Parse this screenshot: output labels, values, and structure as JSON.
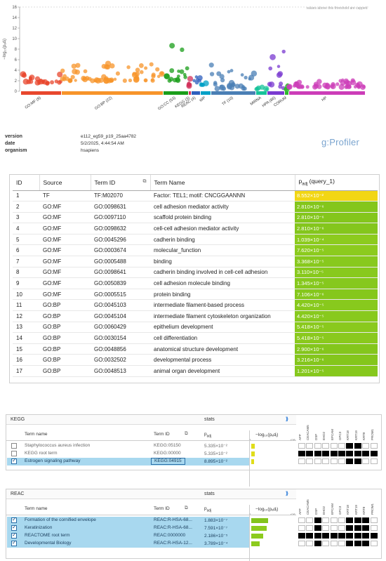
{
  "manhattan": {
    "y_axis_label": "−log₁₀(pₐdⱼ)",
    "cap_note": "values above this threshold are capped",
    "y_ticks": [
      "0",
      "2",
      "4",
      "6",
      "8",
      "10",
      "12",
      "14",
      "16"
    ],
    "sources": [
      {
        "label": "GO:MF (9)",
        "color": "#e8472d"
      },
      {
        "label": "GO:BP (22)",
        "color": "#f7942a"
      },
      {
        "label": "GO:CC (53)",
        "color": "#1a9e1a"
      },
      {
        "label": "KEGG (3)",
        "color": "#d2305a"
      },
      {
        "label": "REAC (4)",
        "color": "#2d5fbd"
      },
      {
        "label": "WP",
        "color": "#00a0c6"
      },
      {
        "label": "TF (10)",
        "color": "#4a7fb5"
      },
      {
        "label": "MIRNA",
        "color": "#17c39a"
      },
      {
        "label": "HPA (86)",
        "color": "#7a3ad0"
      },
      {
        "label": "CORUM",
        "color": "#2db82d"
      },
      {
        "label": "HP",
        "color": "#cc3db8"
      }
    ]
  },
  "meta": {
    "version_label": "version",
    "version": "e112_eg59_p19_25aa4782",
    "date_label": "date",
    "date": "5/2/2025, 4:44:54 AM",
    "organism_label": "organism",
    "organism": "hsapiens",
    "brand": "g:Profiler"
  },
  "main_table": {
    "headers": {
      "id": "ID",
      "source": "Source",
      "term_id": "Term ID",
      "term_name": "Term Name",
      "padj": "p",
      "padj_sub": "adj",
      "padj_query": " (query_1)"
    },
    "rows": [
      {
        "id": "1",
        "source": "TF",
        "term_id": "TF:M02070",
        "term_name": "Factor: TEL1; motif: CNCGGAANNN",
        "padj": "8.552×10⁻²",
        "color": "#f2d614"
      },
      {
        "id": "2",
        "source": "GO:MF",
        "term_id": "GO:0098631",
        "term_name": "cell adhesion mediator activity",
        "padj": "2.810×10⁻⁶",
        "color": "#84c61c"
      },
      {
        "id": "3",
        "source": "GO:MF",
        "term_id": "GO:0097110",
        "term_name": "scaffold protein binding",
        "padj": "2.810×10⁻⁶",
        "color": "#84c61c"
      },
      {
        "id": "4",
        "source": "GO:MF",
        "term_id": "GO:0098632",
        "term_name": "cell-cell adhesion mediator activity",
        "padj": "2.810×10⁻⁶",
        "color": "#84c61c"
      },
      {
        "id": "5",
        "source": "GO:MF",
        "term_id": "GO:0045296",
        "term_name": "cadherin binding",
        "padj": "1.039×10⁻⁴",
        "color": "#8ccb1e"
      },
      {
        "id": "6",
        "source": "GO:MF",
        "term_id": "GO:0003674",
        "term_name": "molecular_function",
        "padj": "7.620×10⁻⁵",
        "color": "#8ccb1e"
      },
      {
        "id": "7",
        "source": "GO:MF",
        "term_id": "GO:0005488",
        "term_name": "binding",
        "padj": "3.368×10⁻⁵",
        "color": "#88c91d"
      },
      {
        "id": "8",
        "source": "GO:MF",
        "term_id": "GO:0098641",
        "term_name": "cadherin binding involved in cell-cell adhesion",
        "padj": "3.110×10⁻⁵",
        "color": "#88c91d"
      },
      {
        "id": "9",
        "source": "GO:MF",
        "term_id": "GO:0050839",
        "term_name": "cell adhesion molecule binding",
        "padj": "1.345×10⁻⁵",
        "color": "#86c81d"
      },
      {
        "id": "10",
        "source": "GO:MF",
        "term_id": "GO:0005515",
        "term_name": "protein binding",
        "padj": "7.106×10⁻⁶",
        "color": "#85c71c"
      },
      {
        "id": "11",
        "source": "GO:BP",
        "term_id": "GO:0045103",
        "term_name": "intermediate filament-based process",
        "padj": "4.420×10⁻⁵",
        "color": "#88c91d"
      },
      {
        "id": "12",
        "source": "GO:BP",
        "term_id": "GO:0045104",
        "term_name": "intermediate filament cytoskeleton organization",
        "padj": "4.420×10⁻⁵",
        "color": "#88c91d"
      },
      {
        "id": "13",
        "source": "GO:BP",
        "term_id": "GO:0060429",
        "term_name": "epithelium development",
        "padj": "5.418×10⁻⁵",
        "color": "#8ac91d"
      },
      {
        "id": "14",
        "source": "GO:BP",
        "term_id": "GO:0030154",
        "term_name": "cell differentiation",
        "padj": "5.418×10⁻⁵",
        "color": "#8ac91d"
      },
      {
        "id": "15",
        "source": "GO:BP",
        "term_id": "GO:0048856",
        "term_name": "anatomical structure development",
        "padj": "2.900×10⁻⁶",
        "color": "#84c61c"
      },
      {
        "id": "16",
        "source": "GO:BP",
        "term_id": "GO:0032502",
        "term_name": "developmental process",
        "padj": "3.216×10⁻⁶",
        "color": "#84c61c"
      },
      {
        "id": "17",
        "source": "GO:BP",
        "term_id": "GO:0048513",
        "term_name": "animal organ development",
        "padj": "1.201×10⁻⁵",
        "color": "#86c81d"
      }
    ]
  },
  "kegg": {
    "title": "KEGG",
    "stats": "stats",
    "expand": "⟫",
    "col_term_name": "Term name",
    "col_term_id": "Term ID",
    "col_padj": "p",
    "col_padj_sub": "adj",
    "col_log": "−log₁₀(pₐdⱼ)",
    "axis_min": "0",
    "axis_max": "≤16",
    "genes": [
      "AFP",
      "CEACAM5",
      "DSP",
      "EHD2",
      "EPCAM",
      "GPC3",
      "KRT18",
      "KRT19",
      "KRT8",
      "PROM1"
    ],
    "rows": [
      {
        "name": "Staphylococcus aureus infection",
        "id": "KEGG:05150",
        "padj": "5.335×10⁻²",
        "log": 1.27,
        "checked": false,
        "highlight": false,
        "cells": [
          0,
          0,
          0,
          0,
          0,
          0,
          1,
          1,
          0,
          0
        ]
      },
      {
        "name": "KEGG root term",
        "id": "KEGG:00000",
        "padj": "5.335×10⁻²",
        "log": 1.27,
        "checked": false,
        "highlight": false,
        "cells": [
          1,
          1,
          1,
          1,
          1,
          1,
          1,
          1,
          1,
          1
        ]
      },
      {
        "name": "Estrogen signaling pathway",
        "id": "KEGG:04915",
        "padj": "8.895×10⁻²",
        "log": 1.05,
        "checked": true,
        "highlight": true,
        "cells": [
          0,
          0,
          0,
          0,
          0,
          0,
          1,
          1,
          0,
          0
        ]
      }
    ]
  },
  "reac": {
    "title": "REAC",
    "stats": "stats",
    "expand": "⟫",
    "col_term_name": "Term name",
    "col_term_id": "Term ID",
    "col_padj": "p",
    "col_padj_sub": "adj",
    "col_log": "−log₁₀(pₐdⱼ)",
    "axis_min": "0",
    "axis_max": "≤16",
    "genes": [
      "AFP",
      "CEACAM5",
      "DSP",
      "EHD2",
      "EPCAM",
      "GPC3",
      "KRT18",
      "KRT19",
      "KRT8",
      "PROM1"
    ],
    "rows": [
      {
        "name": "Formation of the cornified envelope",
        "id": "REAC:R-HSA-68...",
        "padj": "1.883×10⁻⁷",
        "log": 6.73,
        "checked": true,
        "highlight": true,
        "cells": [
          0,
          0,
          1,
          0,
          0,
          0,
          1,
          1,
          1,
          0
        ]
      },
      {
        "name": "Keratinization",
        "id": "REAC:R-HSA-68...",
        "padj": "7.591×10⁻⁷",
        "log": 6.12,
        "checked": true,
        "highlight": true,
        "cells": [
          0,
          0,
          1,
          0,
          0,
          0,
          1,
          1,
          1,
          0
        ]
      },
      {
        "name": "REACTOME root term",
        "id": "REAC:0000000",
        "padj": "2.186×10⁻⁵",
        "log": 4.66,
        "checked": true,
        "highlight": true,
        "cells": [
          1,
          1,
          1,
          1,
          1,
          1,
          1,
          1,
          1,
          1
        ]
      },
      {
        "name": "Developmental Biology",
        "id": "REAC:R-HSA-12...",
        "padj": "3.789×10⁻⁴",
        "log": 3.42,
        "checked": true,
        "highlight": true,
        "cells": [
          0,
          0,
          1,
          0,
          0,
          0,
          1,
          1,
          1,
          0
        ]
      }
    ]
  }
}
